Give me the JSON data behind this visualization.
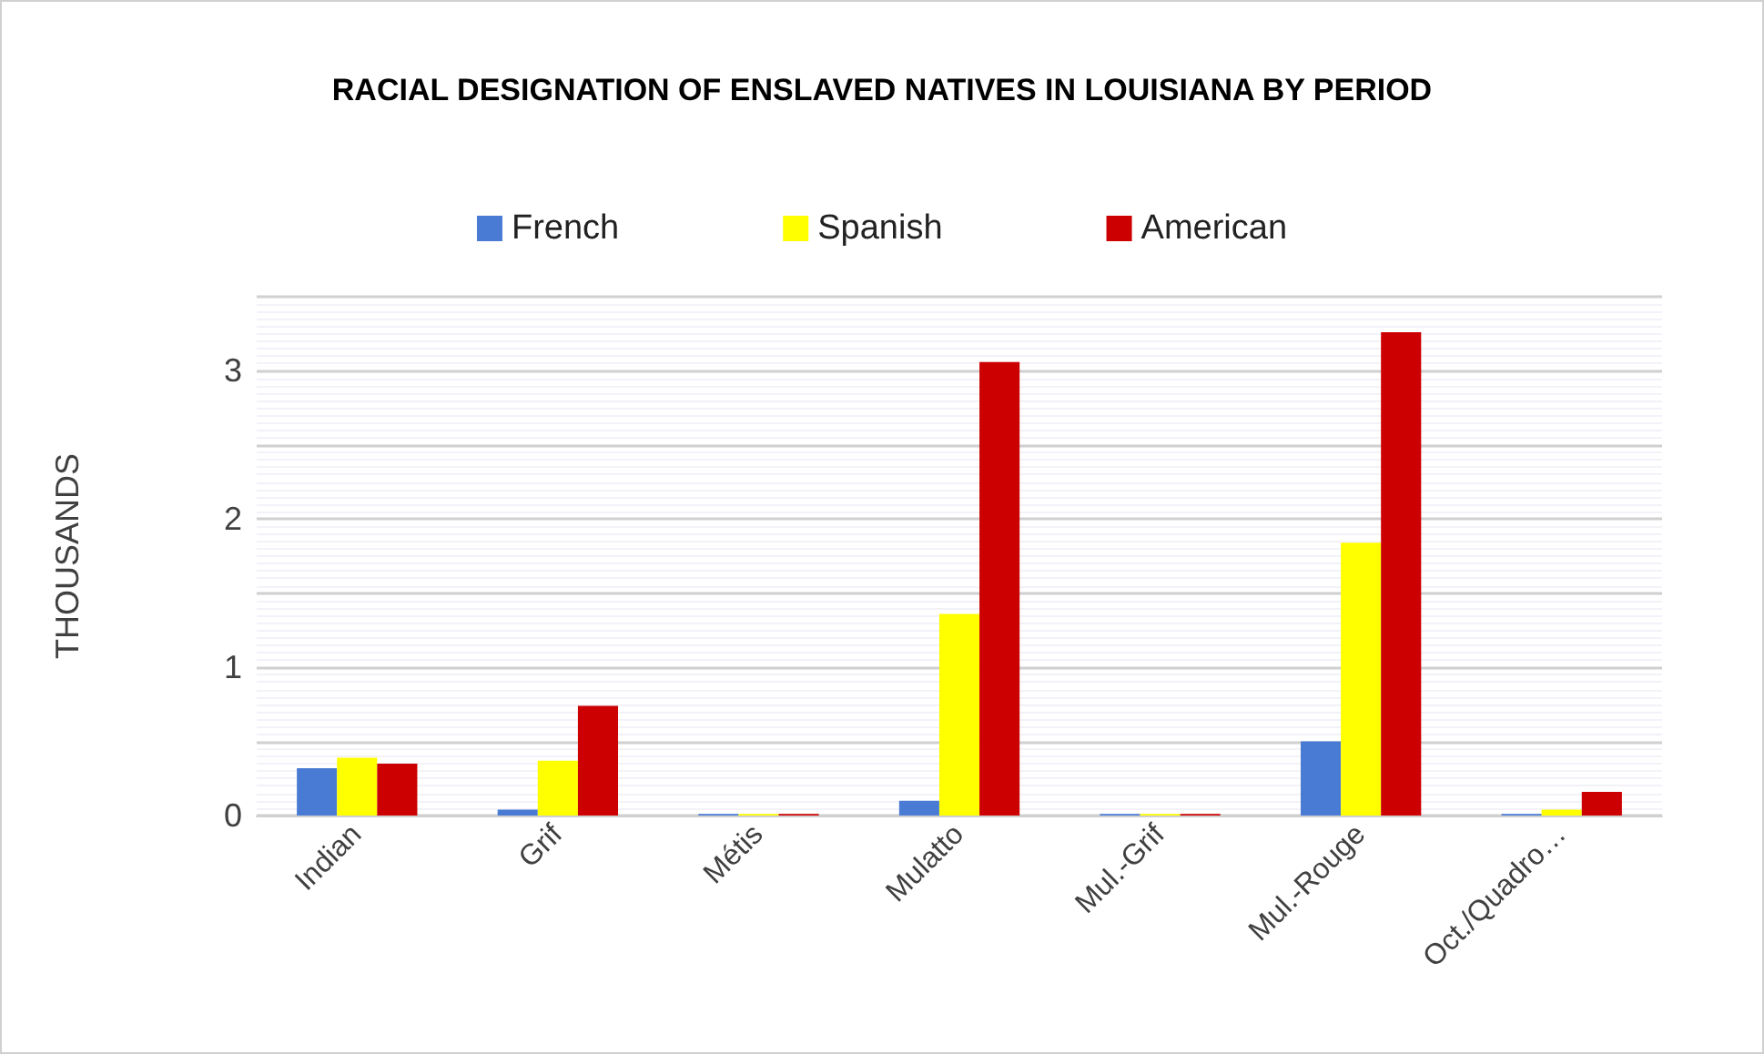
{
  "chart_data": {
    "type": "bar",
    "title": "RACIAL DESIGNATION OF ENSLAVED NATIVES IN LOUISIANA BY PERIOD",
    "ylabel": "THOUSANDS",
    "categories": [
      "Indian",
      "Grif",
      "Métis",
      "Mulatto",
      "Mul.-Grif",
      "Mul.-Rouge",
      "Oct./Quadro…"
    ],
    "series": [
      {
        "name": "French",
        "color": "#4a7bd4",
        "values": [
          0.32,
          0.04,
          0.01,
          0.1,
          0.01,
          0.5,
          0.01
        ]
      },
      {
        "name": "Spanish",
        "color": "#ffff00",
        "values": [
          0.39,
          0.37,
          0.01,
          1.36,
          0.01,
          1.84,
          0.04
        ]
      },
      {
        "name": "American",
        "color": "#cc0000",
        "values": [
          0.35,
          0.74,
          0.01,
          3.06,
          0.01,
          3.26,
          0.16
        ]
      }
    ],
    "ylim": [
      0,
      3.5
    ],
    "yticks": [
      0,
      1,
      2,
      3
    ],
    "grid": "y",
    "legend": "top"
  }
}
